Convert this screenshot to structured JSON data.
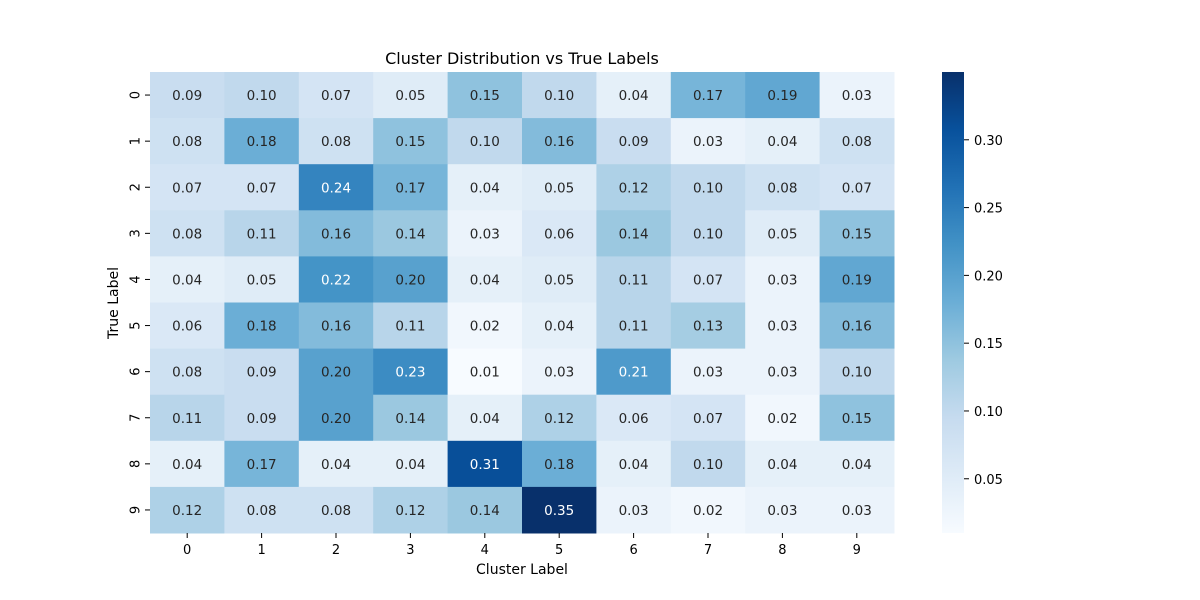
{
  "chart_data": {
    "type": "heatmap",
    "title": "Cluster Distribution vs True Labels",
    "xlabel": "Cluster Label",
    "ylabel": "True Label",
    "x_categories": [
      "0",
      "1",
      "2",
      "3",
      "4",
      "5",
      "6",
      "7",
      "8",
      "9"
    ],
    "y_categories": [
      "0",
      "1",
      "2",
      "3",
      "4",
      "5",
      "6",
      "7",
      "8",
      "9"
    ],
    "values": [
      [
        0.09,
        0.1,
        0.07,
        0.05,
        0.15,
        0.1,
        0.04,
        0.17,
        0.19,
        0.03
      ],
      [
        0.08,
        0.18,
        0.08,
        0.15,
        0.1,
        0.16,
        0.09,
        0.03,
        0.04,
        0.08
      ],
      [
        0.07,
        0.07,
        0.24,
        0.17,
        0.04,
        0.05,
        0.12,
        0.1,
        0.08,
        0.07
      ],
      [
        0.08,
        0.11,
        0.16,
        0.14,
        0.03,
        0.06,
        0.14,
        0.1,
        0.05,
        0.15
      ],
      [
        0.04,
        0.05,
        0.22,
        0.2,
        0.04,
        0.05,
        0.11,
        0.07,
        0.03,
        0.19
      ],
      [
        0.06,
        0.18,
        0.16,
        0.11,
        0.02,
        0.04,
        0.11,
        0.13,
        0.03,
        0.16
      ],
      [
        0.08,
        0.09,
        0.2,
        0.23,
        0.01,
        0.03,
        0.21,
        0.03,
        0.03,
        0.1
      ],
      [
        0.11,
        0.09,
        0.2,
        0.14,
        0.04,
        0.12,
        0.06,
        0.07,
        0.02,
        0.15
      ],
      [
        0.04,
        0.17,
        0.04,
        0.04,
        0.31,
        0.18,
        0.04,
        0.1,
        0.04,
        0.04
      ],
      [
        0.12,
        0.08,
        0.08,
        0.12,
        0.14,
        0.35,
        0.03,
        0.02,
        0.03,
        0.03
      ]
    ],
    "value_format": "0.00",
    "colormap": "Blues",
    "color_range": [
      0.01,
      0.35
    ],
    "colorbar_ticks": [
      "0.05",
      "0.10",
      "0.15",
      "0.20",
      "0.25",
      "0.30"
    ],
    "colorbar_tick_values": [
      0.05,
      0.1,
      0.15,
      0.2,
      0.25,
      0.3
    ],
    "grid": false,
    "colorbar_position": "right"
  }
}
